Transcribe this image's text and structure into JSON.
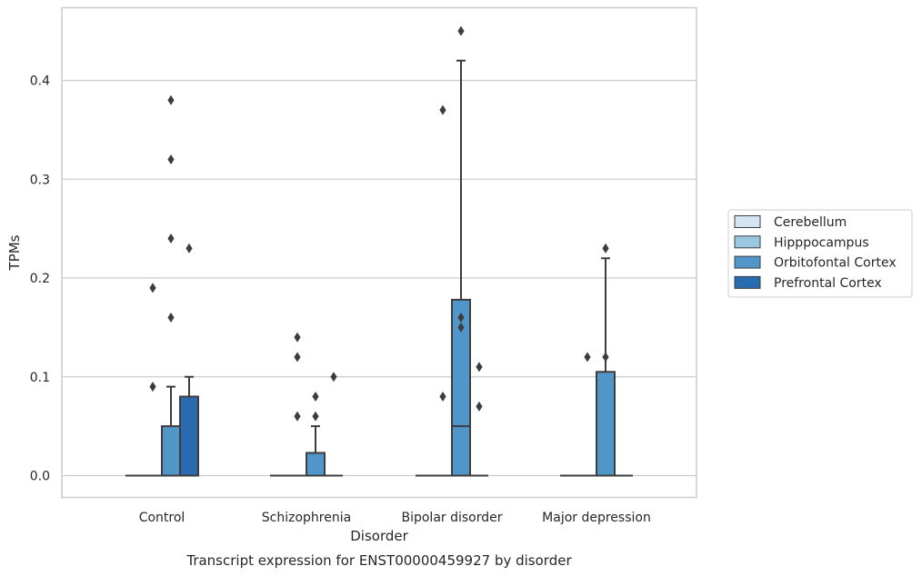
{
  "chart_data": {
    "type": "boxplot",
    "title": "Transcript expression for ENST00000459927 by disorder",
    "xlabel": "Disorder",
    "ylabel": "TPMs",
    "ylim": [
      -0.022,
      0.475
    ],
    "yticks": [
      0.0,
      0.1,
      0.2,
      0.3,
      0.4
    ],
    "ytick_labels": [
      "0.0",
      "0.1",
      "0.2",
      "0.3",
      "0.4"
    ],
    "grid": "horizontal",
    "legend_position": "right",
    "categories": [
      "Control",
      "Schizophrenia",
      "Bipolar disorder",
      "Major depression"
    ],
    "hues": [
      {
        "name": "Cerebellum",
        "color": "#d3e4f3"
      },
      {
        "name": "Hipppocampus",
        "color": "#9ac8e0"
      },
      {
        "name": "Orbitofontal Cortex",
        "color": "#5096c8"
      },
      {
        "name": "Prefrontal Cortex",
        "color": "#2a6bb0"
      }
    ],
    "boxes": [
      {
        "category": 0,
        "hue": 0,
        "q1": 0,
        "median": 0,
        "q3": 0,
        "whislo": 0,
        "whishi": 0,
        "fliers": []
      },
      {
        "category": 0,
        "hue": 1,
        "q1": 0,
        "median": 0,
        "q3": 0,
        "whislo": 0,
        "whishi": 0,
        "fliers": [
          0.09,
          0.19
        ]
      },
      {
        "category": 0,
        "hue": 2,
        "q1": 0,
        "median": 0,
        "q3": 0.05,
        "whislo": 0,
        "whishi": 0.09,
        "fliers": [
          0.16,
          0.24,
          0.32,
          0.38
        ]
      },
      {
        "category": 0,
        "hue": 3,
        "q1": 0,
        "median": 0,
        "q3": 0.08,
        "whislo": 0,
        "whishi": 0.1,
        "fliers": [
          0.23
        ]
      },
      {
        "category": 1,
        "hue": 0,
        "q1": 0,
        "median": 0,
        "q3": 0,
        "whislo": 0,
        "whishi": 0,
        "fliers": []
      },
      {
        "category": 1,
        "hue": 1,
        "q1": 0,
        "median": 0,
        "q3": 0,
        "whislo": 0,
        "whishi": 0,
        "fliers": [
          0.06,
          0.12,
          0.14
        ]
      },
      {
        "category": 1,
        "hue": 2,
        "q1": 0,
        "median": 0,
        "q3": 0.023,
        "whislo": 0,
        "whishi": 0.05,
        "fliers": [
          0.06,
          0.08
        ]
      },
      {
        "category": 1,
        "hue": 3,
        "q1": 0,
        "median": 0,
        "q3": 0,
        "whislo": 0,
        "whishi": 0,
        "fliers": [
          0.1
        ]
      },
      {
        "category": 2,
        "hue": 0,
        "q1": 0,
        "median": 0,
        "q3": 0,
        "whislo": 0,
        "whishi": 0,
        "fliers": []
      },
      {
        "category": 2,
        "hue": 1,
        "q1": 0,
        "median": 0,
        "q3": 0,
        "whislo": 0,
        "whishi": 0,
        "fliers": [
          0.08,
          0.37
        ]
      },
      {
        "category": 2,
        "hue": 2,
        "q1": 0,
        "median": 0.05,
        "q3": 0.178,
        "whislo": 0,
        "whishi": 0.42,
        "fliers": [
          0.15,
          0.16,
          0.45
        ]
      },
      {
        "category": 2,
        "hue": 3,
        "q1": 0,
        "median": 0,
        "q3": 0,
        "whislo": 0,
        "whishi": 0,
        "fliers": [
          0.07,
          0.11
        ]
      },
      {
        "category": 3,
        "hue": 0,
        "q1": 0,
        "median": 0,
        "q3": 0,
        "whislo": 0,
        "whishi": 0,
        "fliers": []
      },
      {
        "category": 3,
        "hue": 1,
        "q1": 0,
        "median": 0,
        "q3": 0,
        "whislo": 0,
        "whishi": 0,
        "fliers": [
          0.12
        ]
      },
      {
        "category": 3,
        "hue": 2,
        "q1": 0,
        "median": 0,
        "q3": 0.105,
        "whislo": 0,
        "whishi": 0.22,
        "fliers": [
          0.12,
          0.23
        ]
      },
      {
        "category": 3,
        "hue": 3,
        "q1": 0,
        "median": 0,
        "q3": 0,
        "whislo": 0,
        "whishi": 0,
        "fliers": []
      }
    ]
  }
}
